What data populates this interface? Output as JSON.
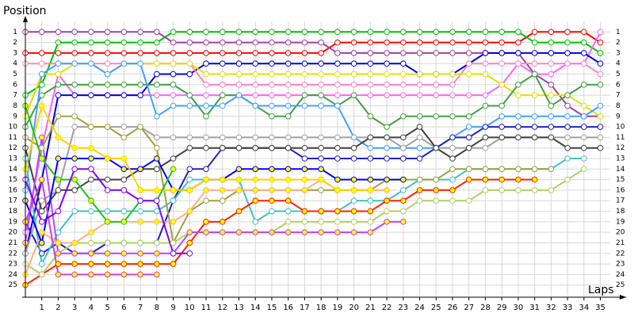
{
  "chart_data": {
    "type": "lap",
    "title": "Position",
    "x_label": "Laps",
    "x": [
      0,
      1,
      2,
      3,
      4,
      5,
      6,
      7,
      8,
      9,
      10,
      11,
      12,
      13,
      14,
      15,
      16,
      17,
      18,
      19,
      20,
      21,
      22,
      23,
      24,
      25,
      26,
      27,
      28,
      29,
      30,
      31,
      32,
      33,
      34,
      35
    ],
    "xlim": [
      0,
      35.6
    ],
    "ylim": [
      0,
      26
    ],
    "y_reversed": true,
    "grid": true,
    "xticks": [
      1,
      2,
      3,
      4,
      5,
      6,
      7,
      8,
      9,
      10,
      11,
      12,
      13,
      14,
      15,
      16,
      17,
      18,
      19,
      20,
      21,
      22,
      23,
      24,
      25,
      26,
      27,
      28,
      29,
      30,
      31,
      32,
      33,
      34,
      35
    ],
    "yticks": [
      1,
      2,
      3,
      4,
      5,
      6,
      7,
      8,
      9,
      10,
      11,
      12,
      13,
      14,
      15,
      16,
      17,
      18,
      19,
      20,
      21,
      22,
      23,
      24,
      25
    ],
    "series": [
      {
        "color": "#ff0000",
        "marker_fill": "#ffffff",
        "values": [
          3,
          3,
          3,
          3,
          3,
          3,
          3,
          3,
          3,
          3,
          3,
          3,
          3,
          3,
          3,
          3,
          3,
          3,
          3,
          2,
          2,
          2,
          2,
          2,
          2,
          2,
          2,
          2,
          2,
          2,
          2,
          1,
          1,
          1,
          1,
          2
        ]
      },
      {
        "color": "#00c000",
        "marker_fill": "#ffffff",
        "values": [
          7,
          6,
          2,
          2,
          2,
          2,
          2,
          2,
          2,
          1,
          1,
          1,
          1,
          1,
          1,
          1,
          1,
          1,
          1,
          1,
          1,
          1,
          1,
          1,
          1,
          1,
          1,
          1,
          1,
          1,
          1,
          2,
          2,
          2,
          2,
          3
        ]
      },
      {
        "color": "#a040a0",
        "marker_fill": "#ffffff",
        "values": [
          1,
          1,
          1,
          1,
          1,
          1,
          1,
          1,
          1,
          2,
          2,
          2,
          2,
          2,
          2,
          2,
          2,
          2,
          2,
          3,
          3,
          3,
          3,
          3,
          3,
          3,
          3,
          3,
          3,
          3,
          3,
          5,
          6,
          8,
          9,
          9
        ]
      },
      {
        "color": "#ff60ff",
        "marker_fill": "#ffffff",
        "values": [
          20,
          12,
          5,
          7,
          7,
          7,
          7,
          7,
          7,
          7,
          7,
          7,
          7,
          7,
          7,
          7,
          7,
          7,
          7,
          7,
          7,
          7,
          7,
          7,
          7,
          7,
          7,
          7,
          7,
          6,
          4,
          5,
          5,
          4,
          4,
          1
        ]
      },
      {
        "color": "#0000e0",
        "marker_fill": "#ffffff",
        "values": [
          22,
          15,
          7,
          7,
          7,
          7,
          7,
          7,
          5,
          5,
          5,
          4,
          4,
          4,
          4,
          4,
          4,
          4,
          4,
          4,
          4,
          4,
          4,
          4,
          5,
          5,
          5,
          4,
          3,
          3,
          3,
          3,
          3,
          3,
          3,
          4
        ]
      },
      {
        "color": "#ff80c0",
        "marker_fill": "#ffffff",
        "values": [
          4,
          4,
          4,
          4,
          4,
          4,
          4,
          4,
          4,
          4,
          4,
          6,
          6,
          6,
          6,
          6,
          6,
          6,
          6,
          6,
          6,
          6,
          6,
          6,
          6,
          6,
          6,
          4,
          4,
          4,
          4,
          4,
          4,
          4,
          4,
          5
        ]
      },
      {
        "color": "#e0e000",
        "marker_fill": "#ffffff",
        "values": [
          9,
          5,
          5,
          4,
          4,
          5,
          4,
          4,
          4,
          4,
          4,
          5,
          5,
          5,
          5,
          5,
          5,
          5,
          5,
          5,
          5,
          5,
          5,
          5,
          5,
          5,
          5,
          5,
          5,
          6,
          7,
          7,
          7,
          7,
          8,
          9
        ]
      },
      {
        "color": "#40a040",
        "marker_fill": "#ffffff",
        "values": [
          10,
          7,
          6,
          6,
          6,
          6,
          6,
          6,
          6,
          6,
          7,
          9,
          7,
          7,
          8,
          9,
          9,
          7,
          7,
          8,
          7,
          9,
          10,
          9,
          9,
          9,
          9,
          9,
          8,
          8,
          6,
          5,
          8,
          7,
          6,
          6
        ]
      },
      {
        "color": "#40a0ff",
        "marker_fill": "#ffffff",
        "values": [
          16,
          5,
          4,
          4,
          4,
          5,
          4,
          4,
          9,
          8,
          8,
          8,
          8,
          7,
          8,
          8,
          8,
          8,
          8,
          8,
          11,
          12,
          12,
          12,
          12,
          12,
          11,
          10,
          10,
          9,
          9,
          9,
          9,
          9,
          9,
          8
        ]
      },
      {
        "color": "#2020c0",
        "marker_fill": "#ffffff",
        "values": [
          19,
          22,
          21,
          22,
          22,
          21,
          21,
          21,
          21,
          17,
          14,
          14,
          12,
          12,
          12,
          12,
          12,
          13,
          13,
          13,
          13,
          13,
          13,
          13,
          13,
          12,
          11,
          11,
          10,
          10,
          10,
          10,
          10,
          10,
          10,
          10
        ]
      },
      {
        "color": "#a0a0a0",
        "marker_fill": "#ffffff",
        "values": [
          22,
          17,
          16,
          10,
          10,
          10,
          10,
          10,
          11,
          11,
          11,
          11,
          11,
          11,
          11,
          11,
          11,
          11,
          11,
          11,
          11,
          11,
          11,
          12,
          11,
          12,
          12,
          12,
          12,
          11,
          11,
          11,
          11,
          11,
          11,
          11
        ]
      },
      {
        "color": "#404040",
        "marker_fill": "#ffffff",
        "values": [
          12,
          18,
          16,
          16,
          15,
          15,
          15,
          14,
          14,
          13,
          12,
          12,
          12,
          12,
          12,
          12,
          12,
          12,
          12,
          12,
          12,
          11,
          11,
          11,
          10,
          12,
          13,
          12,
          11,
          11,
          11,
          11,
          11,
          12,
          12,
          12
        ]
      },
      {
        "color": "#40c0c0",
        "marker_fill": "#ffffff",
        "values": [
          13,
          23,
          20,
          18,
          18,
          18,
          18,
          18,
          18,
          17,
          15,
          15,
          15,
          15,
          19,
          18,
          18,
          18,
          18,
          18,
          17,
          17,
          17,
          16,
          15,
          15,
          15,
          14,
          14,
          14,
          14,
          14,
          14,
          13,
          13,
          null
        ]
      },
      {
        "color": "#a0a040",
        "marker_fill": "#ffffff",
        "values": [
          11,
          12,
          9,
          9,
          10,
          10,
          11,
          10,
          12,
          21,
          18,
          17,
          17,
          16,
          16,
          16,
          16,
          16,
          16,
          16,
          16,
          16,
          15,
          15,
          15,
          15,
          14,
          14,
          14,
          14,
          14,
          14,
          14,
          null,
          null,
          null
        ]
      },
      {
        "color": "#ff2000",
        "marker_fill": "#ffff00",
        "values": [
          25,
          24,
          23,
          23,
          23,
          23,
          23,
          23,
          23,
          23,
          21,
          19,
          19,
          18,
          17,
          17,
          17,
          18,
          18,
          18,
          18,
          18,
          17,
          17,
          16,
          16,
          16,
          15,
          15,
          15,
          15,
          15,
          null,
          null,
          null,
          null
        ]
      },
      {
        "color": "#b0d060",
        "marker_fill": "#ffffff",
        "values": [
          23,
          24,
          22,
          21,
          21,
          21,
          21,
          21,
          21,
          21,
          20,
          20,
          20,
          20,
          20,
          20,
          19,
          19,
          19,
          19,
          19,
          19,
          18,
          18,
          17,
          17,
          17,
          17,
          16,
          16,
          16,
          16,
          16,
          15,
          14,
          null
        ]
      },
      {
        "color": "#c040ff",
        "marker_fill": "#ffff00",
        "values": [
          21,
          11,
          22,
          22,
          22,
          22,
          22,
          22,
          22,
          22,
          20,
          20,
          20,
          20,
          20,
          20,
          20,
          20,
          20,
          20,
          20,
          20,
          19,
          19,
          null,
          null,
          null,
          null,
          null,
          null,
          null,
          null,
          null,
          null,
          null,
          null
        ]
      },
      {
        "color": "#ffb080",
        "marker_fill": "#ffff00",
        "values": [
          24,
          20,
          21,
          21,
          20,
          19,
          19,
          19,
          19,
          19,
          18,
          16,
          16,
          16,
          16,
          16,
          16,
          16,
          15,
          16,
          16,
          16,
          16,
          null,
          null,
          null,
          null,
          null,
          null,
          null,
          null,
          null,
          null,
          null,
          null,
          null
        ]
      },
      {
        "color": "#0000ff",
        "marker_fill": "#ffff00",
        "values": [
          17,
          21,
          13,
          13,
          13,
          13,
          14,
          14,
          13,
          16,
          16,
          15,
          15,
          14,
          14,
          14,
          14,
          14,
          14,
          15,
          15,
          15,
          15,
          15,
          null,
          null,
          null,
          null,
          null,
          null,
          null,
          null,
          null,
          null,
          null,
          null
        ]
      },
      {
        "color": "#ffd000",
        "marker_fill": "#ffff00",
        "values": [
          14,
          8,
          11,
          12,
          12,
          13,
          13,
          16,
          16,
          16,
          16,
          15,
          15,
          15,
          15,
          15,
          15,
          15,
          15,
          16,
          16,
          16,
          null,
          null,
          null,
          null,
          null,
          null,
          null,
          null,
          null,
          null,
          null,
          null,
          null,
          null
        ]
      },
      {
        "color": "#d040d0",
        "marker_fill": "#ffff00",
        "values": [
          19,
          15,
          24,
          24,
          24,
          24,
          24,
          24,
          24,
          null,
          null,
          null,
          null,
          null,
          null,
          null,
          null,
          null,
          null,
          null,
          null,
          null,
          null,
          null,
          null,
          null,
          null,
          null,
          null,
          null,
          null,
          null,
          null,
          null,
          null,
          null
        ]
      },
      {
        "color": "#20c020",
        "marker_fill": "#ffff00",
        "values": [
          8,
          13,
          15,
          15,
          17,
          19,
          19,
          17,
          17,
          14,
          null,
          null,
          null,
          null,
          null,
          null,
          null,
          null,
          null,
          null,
          null,
          null,
          null,
          null,
          null,
          null,
          null,
          null,
          null,
          null,
          null,
          null,
          null,
          null,
          null,
          null
        ]
      },
      {
        "color": "#8000ff",
        "marker_fill": "#ffffff",
        "values": [
          15,
          19,
          18,
          14,
          14,
          16,
          16,
          17,
          17,
          22,
          22,
          null,
          null,
          null,
          null,
          null,
          null,
          null,
          null,
          null,
          null,
          null,
          null,
          null,
          null,
          null,
          null,
          null,
          null,
          null,
          null,
          null,
          null,
          null,
          null,
          null
        ]
      }
    ]
  }
}
